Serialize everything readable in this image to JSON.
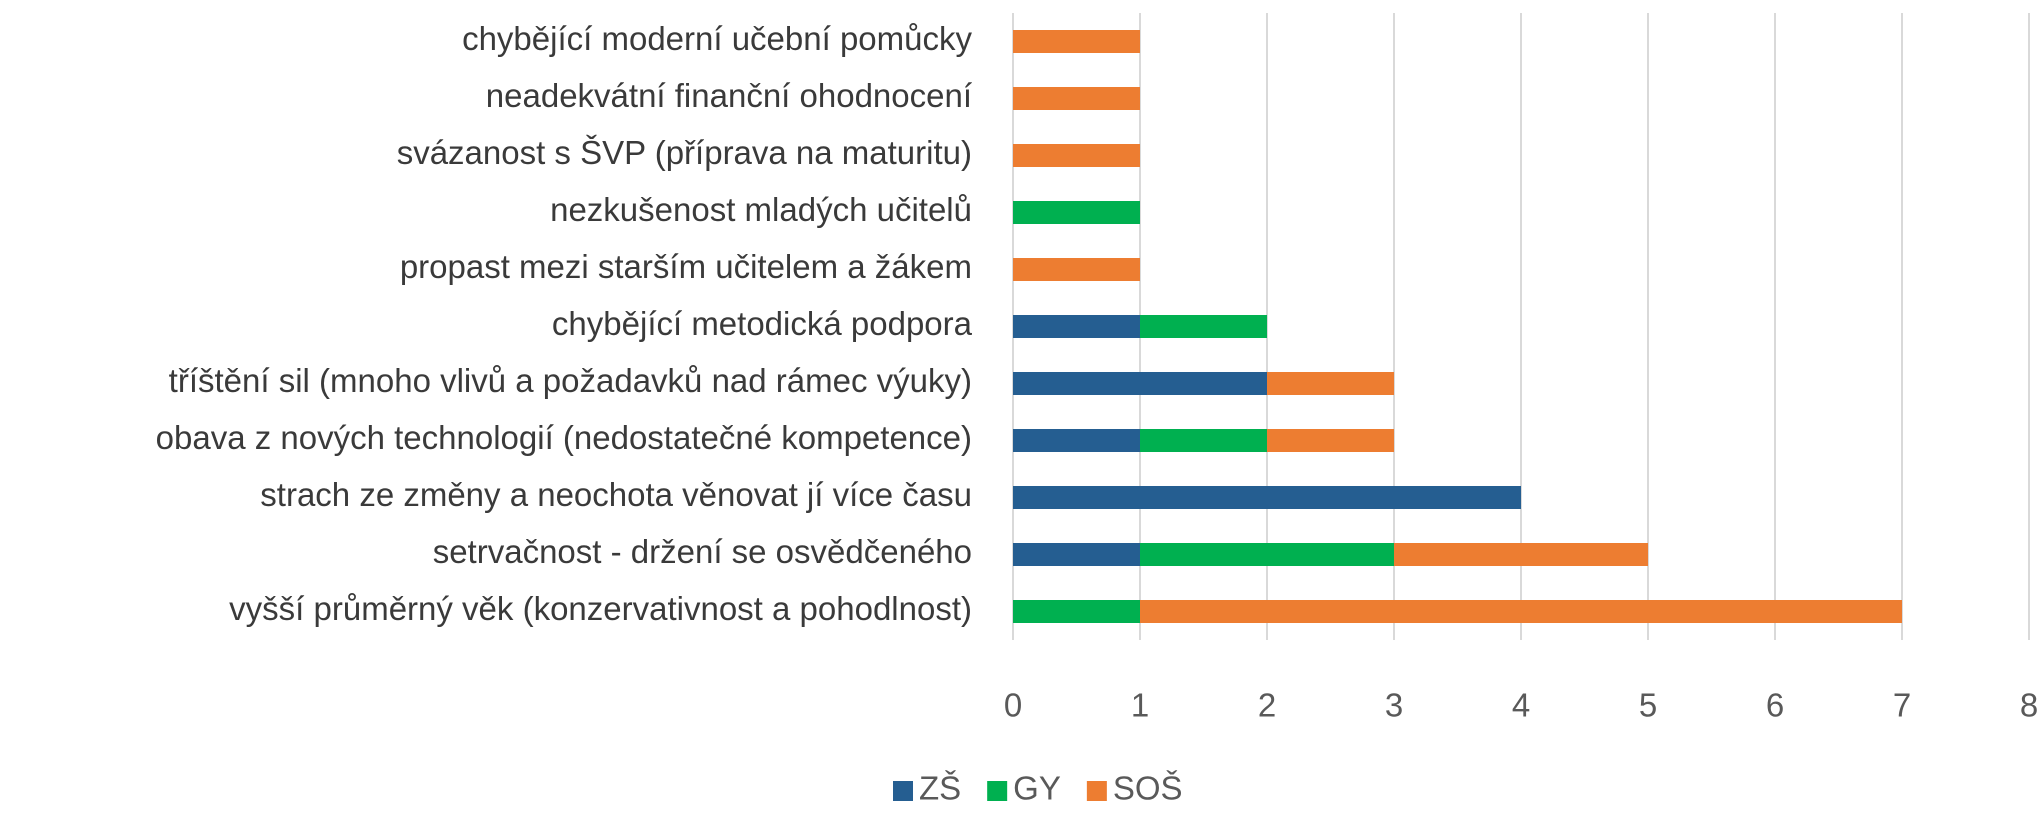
{
  "chart_data": {
    "type": "bar",
    "orientation": "horizontal",
    "stacked": true,
    "categories": [
      "vyšší průměrný věk (konzervativnost a pohodlnost)",
      "setrvačnost - držení se osvědčeného",
      "strach ze změny a neochota věnovat jí více času",
      "obava z nových technologií (nedostatečné kompetence)",
      "tříštění sil (mnoho vlivů a požadavků nad rámec výuky)",
      "chybějící metodická podpora",
      "propast mezi starším učitelem a žákem",
      "nezkušenost mladých učitelů",
      "svázanost s ŠVP (příprava na maturitu)",
      "neadekvátní finanční ohodnocení",
      "chybějící moderní učební pomůcky"
    ],
    "series": [
      {
        "name": "ZŠ",
        "color": "#255e91",
        "values": [
          0,
          1,
          4,
          1,
          2,
          1,
          0,
          0,
          0,
          0,
          0
        ]
      },
      {
        "name": "GY",
        "color": "#00b050",
        "values": [
          1,
          2,
          0,
          1,
          0,
          1,
          0,
          1,
          0,
          0,
          0
        ]
      },
      {
        "name": "SOŠ",
        "color": "#ed7d31",
        "values": [
          6,
          2,
          0,
          1,
          1,
          0,
          1,
          0,
          1,
          1,
          1
        ]
      }
    ],
    "xlim": [
      0,
      8
    ],
    "xticks": [
      0,
      1,
      2,
      3,
      4,
      5,
      6,
      7,
      8
    ],
    "grid": true,
    "legend": "bottom"
  }
}
